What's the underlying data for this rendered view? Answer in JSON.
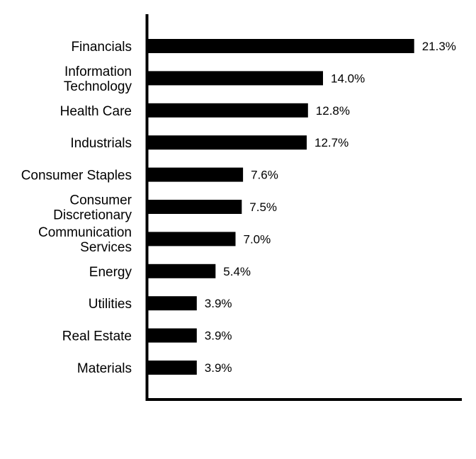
{
  "chart_data": {
    "type": "bar",
    "orientation": "horizontal",
    "title": "",
    "xlabel": "",
    "ylabel": "",
    "xlim": [
      0,
      25
    ],
    "grid": false,
    "value_suffix": "%",
    "bar_color": "#000000",
    "axis_color": "#000000",
    "categories": [
      [
        "Financials"
      ],
      [
        "Information",
        "Technology"
      ],
      [
        "Health Care"
      ],
      [
        "Industrials"
      ],
      [
        "Consumer Staples"
      ],
      [
        "Consumer",
        "Discretionary"
      ],
      [
        "Communication",
        "Services"
      ],
      [
        "Energy"
      ],
      [
        "Utilities"
      ],
      [
        "Real Estate"
      ],
      [
        "Materials"
      ]
    ],
    "values": [
      21.3,
      14.0,
      12.8,
      12.7,
      7.6,
      7.5,
      7.0,
      5.4,
      3.9,
      3.9,
      3.9
    ],
    "value_labels": [
      "21.3%",
      "14.0%",
      "12.8%",
      "12.7%",
      "7.6%",
      "7.5%",
      "7.0%",
      "5.4%",
      "3.9%",
      "3.9%",
      "3.9%"
    ]
  }
}
